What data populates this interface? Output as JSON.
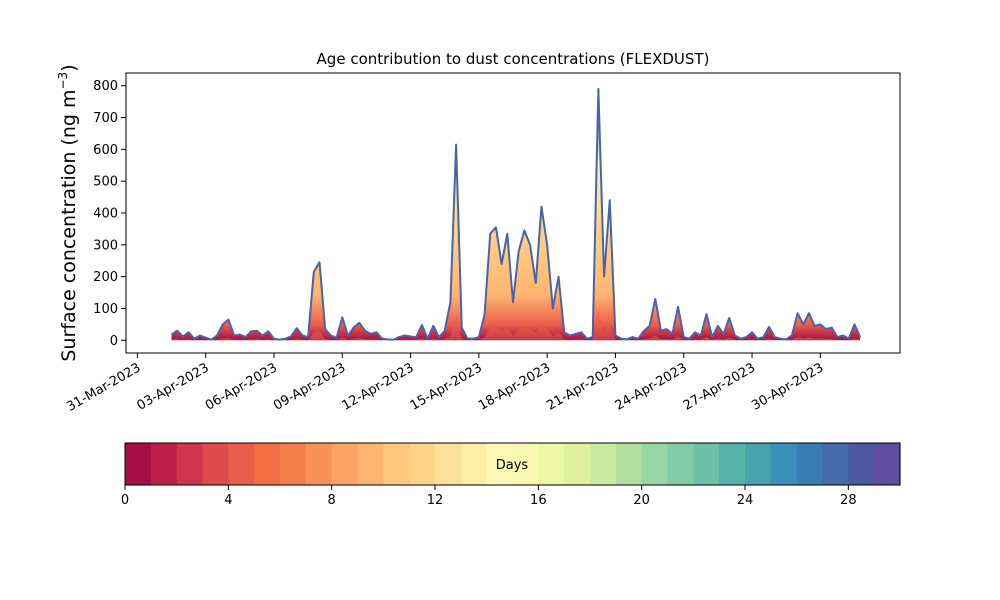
{
  "chart_data": {
    "type": "area",
    "title": "Age contribution to dust concentrations (FLEXDUST)",
    "ylabel_main": "Surface concentration (ng m",
    "ylabel_sup": "−3",
    "ylabel_close": ")",
    "xlabel": "",
    "ylim": [
      -40,
      840
    ],
    "yticks": [
      0,
      100,
      200,
      300,
      400,
      500,
      600,
      700,
      800
    ],
    "x_range_days": [
      "2023-03-30T12:00",
      "2023-05-03T12:00"
    ],
    "xtick_labels": [
      "31-Mar-2023",
      "03-Apr-2023",
      "06-Apr-2023",
      "09-Apr-2023",
      "12-Apr-2023",
      "15-Apr-2023",
      "18-Apr-2023",
      "21-Apr-2023",
      "24-Apr-2023",
      "27-Apr-2023",
      "30-Apr-2023"
    ],
    "xtick_dates": [
      "2023-03-31",
      "2023-04-03",
      "2023-04-06",
      "2023-04-09",
      "2023-04-12",
      "2023-04-15",
      "2023-04-18",
      "2023-04-21",
      "2023-04-24",
      "2023-04-27",
      "2023-04-30"
    ],
    "total_series": [
      [
        "2023-04-01T12:00",
        18
      ],
      [
        "2023-04-01T18:00",
        30
      ],
      [
        "2023-04-02T00:00",
        12
      ],
      [
        "2023-04-02T06:00",
        25
      ],
      [
        "2023-04-02T12:00",
        5
      ],
      [
        "2023-04-02T18:00",
        15
      ],
      [
        "2023-04-03T00:00",
        8
      ],
      [
        "2023-04-03T06:00",
        2
      ],
      [
        "2023-04-03T12:00",
        15
      ],
      [
        "2023-04-03T18:00",
        50
      ],
      [
        "2023-04-04T00:00",
        65
      ],
      [
        "2023-04-04T06:00",
        15
      ],
      [
        "2023-04-04T12:00",
        18
      ],
      [
        "2023-04-04T18:00",
        10
      ],
      [
        "2023-04-05T00:00",
        28
      ],
      [
        "2023-04-05T06:00",
        30
      ],
      [
        "2023-04-05T12:00",
        15
      ],
      [
        "2023-04-05T18:00",
        28
      ],
      [
        "2023-04-06T00:00",
        5
      ],
      [
        "2023-04-06T06:00",
        2
      ],
      [
        "2023-04-06T12:00",
        5
      ],
      [
        "2023-04-06T18:00",
        12
      ],
      [
        "2023-04-07T00:00",
        38
      ],
      [
        "2023-04-07T06:00",
        15
      ],
      [
        "2023-04-07T12:00",
        10
      ],
      [
        "2023-04-07T18:00",
        215
      ],
      [
        "2023-04-08T00:00",
        245
      ],
      [
        "2023-04-08T06:00",
        35
      ],
      [
        "2023-04-08T12:00",
        15
      ],
      [
        "2023-04-08T18:00",
        8
      ],
      [
        "2023-04-09T00:00",
        72
      ],
      [
        "2023-04-09T06:00",
        15
      ],
      [
        "2023-04-09T12:00",
        40
      ],
      [
        "2023-04-09T18:00",
        55
      ],
      [
        "2023-04-10T00:00",
        30
      ],
      [
        "2023-04-10T06:00",
        20
      ],
      [
        "2023-04-10T12:00",
        25
      ],
      [
        "2023-04-10T18:00",
        5
      ],
      [
        "2023-04-11T00:00",
        3
      ],
      [
        "2023-04-11T06:00",
        2
      ],
      [
        "2023-04-11T12:00",
        10
      ],
      [
        "2023-04-11T18:00",
        15
      ],
      [
        "2023-04-12T00:00",
        12
      ],
      [
        "2023-04-12T06:00",
        10
      ],
      [
        "2023-04-12T12:00",
        48
      ],
      [
        "2023-04-12T18:00",
        5
      ],
      [
        "2023-04-13T00:00",
        45
      ],
      [
        "2023-04-13T06:00",
        10
      ],
      [
        "2023-04-13T12:00",
        30
      ],
      [
        "2023-04-13T18:00",
        120
      ],
      [
        "2023-04-14T00:00",
        615
      ],
      [
        "2023-04-14T06:00",
        40
      ],
      [
        "2023-04-14T12:00",
        5
      ],
      [
        "2023-04-14T18:00",
        5
      ],
      [
        "2023-04-15T00:00",
        10
      ],
      [
        "2023-04-15T06:00",
        80
      ],
      [
        "2023-04-15T12:00",
        335
      ],
      [
        "2023-04-15T18:00",
        355
      ],
      [
        "2023-04-16T00:00",
        240
      ],
      [
        "2023-04-16T06:00",
        335
      ],
      [
        "2023-04-16T12:00",
        120
      ],
      [
        "2023-04-16T18:00",
        280
      ],
      [
        "2023-04-17T00:00",
        345
      ],
      [
        "2023-04-17T06:00",
        300
      ],
      [
        "2023-04-17T12:00",
        180
      ],
      [
        "2023-04-17T18:00",
        420
      ],
      [
        "2023-04-18T00:00",
        300
      ],
      [
        "2023-04-18T06:00",
        100
      ],
      [
        "2023-04-18T12:00",
        200
      ],
      [
        "2023-04-18T18:00",
        25
      ],
      [
        "2023-04-19T00:00",
        15
      ],
      [
        "2023-04-19T06:00",
        20
      ],
      [
        "2023-04-19T12:00",
        25
      ],
      [
        "2023-04-19T18:00",
        5
      ],
      [
        "2023-04-20T00:00",
        10
      ],
      [
        "2023-04-20T06:00",
        790
      ],
      [
        "2023-04-20T12:00",
        200
      ],
      [
        "2023-04-20T18:00",
        440
      ],
      [
        "2023-04-21T00:00",
        15
      ],
      [
        "2023-04-21T06:00",
        5
      ],
      [
        "2023-04-21T12:00",
        3
      ],
      [
        "2023-04-21T18:00",
        10
      ],
      [
        "2023-04-22T00:00",
        5
      ],
      [
        "2023-04-22T06:00",
        30
      ],
      [
        "2023-04-22T12:00",
        45
      ],
      [
        "2023-04-22T18:00",
        130
      ],
      [
        "2023-04-23T00:00",
        30
      ],
      [
        "2023-04-23T06:00",
        35
      ],
      [
        "2023-04-23T12:00",
        20
      ],
      [
        "2023-04-23T18:00",
        105
      ],
      [
        "2023-04-24T00:00",
        10
      ],
      [
        "2023-04-24T06:00",
        5
      ],
      [
        "2023-04-24T12:00",
        25
      ],
      [
        "2023-04-24T18:00",
        15
      ],
      [
        "2023-04-25T00:00",
        82
      ],
      [
        "2023-04-25T06:00",
        10
      ],
      [
        "2023-04-25T12:00",
        45
      ],
      [
        "2023-04-25T18:00",
        20
      ],
      [
        "2023-04-26T00:00",
        70
      ],
      [
        "2023-04-26T06:00",
        15
      ],
      [
        "2023-04-26T12:00",
        5
      ],
      [
        "2023-04-26T18:00",
        10
      ],
      [
        "2023-04-27T00:00",
        25
      ],
      [
        "2023-04-27T06:00",
        5
      ],
      [
        "2023-04-27T12:00",
        10
      ],
      [
        "2023-04-27T18:00",
        42
      ],
      [
        "2023-04-28T00:00",
        10
      ],
      [
        "2023-04-28T06:00",
        5
      ],
      [
        "2023-04-28T12:00",
        3
      ],
      [
        "2023-04-28T18:00",
        15
      ],
      [
        "2023-04-29T00:00",
        85
      ],
      [
        "2023-04-29T06:00",
        50
      ],
      [
        "2023-04-29T12:00",
        85
      ],
      [
        "2023-04-29T18:00",
        45
      ],
      [
        "2023-04-30T00:00",
        50
      ],
      [
        "2023-04-30T06:00",
        35
      ],
      [
        "2023-04-30T12:00",
        40
      ],
      [
        "2023-04-30T18:00",
        10
      ],
      [
        "2023-05-01T00:00",
        15
      ],
      [
        "2023-05-01T06:00",
        5
      ],
      [
        "2023-05-01T12:00",
        50
      ],
      [
        "2023-05-01T18:00",
        10
      ]
    ],
    "colorbar": {
      "label": "Days",
      "range": [
        0,
        30
      ],
      "ticks": [
        0,
        4,
        8,
        12,
        16,
        20,
        24,
        28
      ],
      "colors": [
        "#a50f45",
        "#bc2048",
        "#d0334c",
        "#df4a4c",
        "#e95d4a",
        "#f26f44",
        "#f67f49",
        "#f9925a",
        "#fca365",
        "#fdb56f",
        "#fec57c",
        "#fed38a",
        "#fee09a",
        "#feeca9",
        "#fef8b6",
        "#f7fbb2",
        "#ecf7a6",
        "#dff19c",
        "#caea9f",
        "#b3e0a1",
        "#98d6a4",
        "#81cba6",
        "#6cc0a7",
        "#57b3aa",
        "#4aa2b1",
        "#3b8fb9",
        "#3a7cb6",
        "#466aae",
        "#5158a3",
        "#5e4fa2"
      ]
    }
  }
}
